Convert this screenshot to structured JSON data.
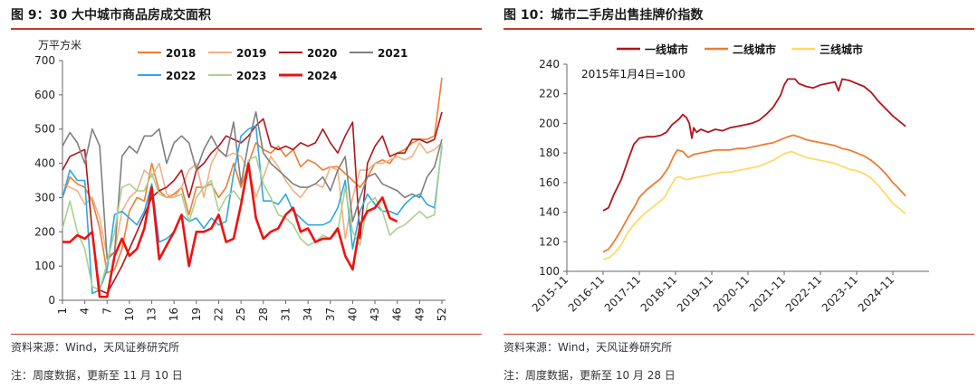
{
  "left": {
    "figure_title": "图 9：30 大中城市商品房成交面积",
    "source": "资料来源：Wind，天风证券研究所",
    "note": "注：周度数据，更新至 11 月 10 日"
  },
  "right": {
    "figure_title": "图 10：城市二手房出售挂牌价指数",
    "source": "资料来源：Wind，天风证券研究所",
    "note": "注：周度数据，更新至 10 月 28 日"
  },
  "chart_data": [
    {
      "type": "line",
      "ylabel": "万平方米",
      "ylim": [
        0,
        700
      ],
      "yticks": [
        0,
        100,
        200,
        300,
        400,
        500,
        600,
        700
      ],
      "xticks": [
        "1",
        "4",
        "7",
        "10",
        "13",
        "16",
        "19",
        "22",
        "25",
        "28",
        "31",
        "34",
        "37",
        "40",
        "43",
        "46",
        "49",
        "52"
      ],
      "legend_position": "top",
      "series": [
        {
          "name": "2018",
          "color": "#ed7d31",
          "width": 1.6,
          "values": [
            300,
            360,
            340,
            330,
            290,
            210,
            80,
            90,
            150,
            260,
            300,
            290,
            400,
            320,
            300,
            310,
            330,
            250,
            330,
            330,
            340,
            300,
            330,
            400,
            330,
            400,
            460,
            440,
            430,
            450,
            420,
            440,
            390,
            410,
            400,
            380,
            390,
            390,
            370,
            350,
            330,
            360,
            400,
            410,
            400,
            430,
            440,
            460,
            470,
            470,
            480,
            650
          ]
        },
        {
          "name": "2019",
          "color": "#f4b183",
          "width": 1.6,
          "values": [
            340,
            330,
            320,
            280,
            300,
            240,
            130,
            140,
            260,
            300,
            320,
            380,
            360,
            400,
            310,
            300,
            330,
            380,
            400,
            300,
            400,
            440,
            420,
            430,
            420,
            380,
            300,
            360,
            420,
            390,
            350,
            320,
            300,
            330,
            340,
            330,
            390,
            380,
            180,
            300,
            380,
            380,
            400,
            400,
            410,
            420,
            410,
            420,
            460,
            430,
            440,
            460
          ]
        },
        {
          "name": "2020",
          "color": "#b0151a",
          "width": 1.6,
          "values": [
            380,
            420,
            430,
            440,
            200,
            30,
            20,
            60,
            100,
            150,
            200,
            250,
            300,
            320,
            330,
            350,
            380,
            300,
            380,
            400,
            430,
            450,
            480,
            470,
            460,
            480,
            510,
            530,
            450,
            440,
            450,
            440,
            460,
            450,
            460,
            500,
            460,
            430,
            480,
            520,
            180,
            400,
            450,
            480,
            420,
            430,
            430,
            470,
            470,
            460,
            470,
            550
          ]
        },
        {
          "name": "2021",
          "color": "#7f7f7f",
          "width": 1.6,
          "values": [
            450,
            490,
            460,
            400,
            500,
            450,
            120,
            140,
            420,
            450,
            430,
            480,
            480,
            500,
            400,
            460,
            480,
            460,
            380,
            440,
            480,
            440,
            420,
            520,
            340,
            460,
            550,
            430,
            400,
            380,
            360,
            340,
            330,
            330,
            340,
            360,
            320,
            380,
            420,
            230,
            300,
            360,
            370,
            340,
            330,
            320,
            300,
            310,
            300,
            360,
            390,
            470
          ]
        },
        {
          "name": "2022",
          "color": "#2ea8e0",
          "width": 1.6,
          "values": [
            300,
            380,
            350,
            350,
            20,
            30,
            90,
            250,
            260,
            240,
            220,
            260,
            340,
            170,
            180,
            200,
            250,
            230,
            240,
            210,
            240,
            220,
            230,
            370,
            480,
            500,
            510,
            290,
            290,
            280,
            310,
            260,
            240,
            220,
            220,
            220,
            230,
            270,
            350,
            150,
            260,
            310,
            280,
            260,
            260,
            250,
            280,
            300,
            310,
            280,
            270,
            450
          ]
        },
        {
          "name": "2023",
          "color": "#a9d18e",
          "width": 1.6,
          "values": [
            210,
            290,
            200,
            150,
            40,
            30,
            110,
            200,
            330,
            340,
            320,
            320,
            370,
            310,
            300,
            300,
            310,
            230,
            300,
            330,
            350,
            260,
            300,
            320,
            290,
            410,
            420,
            340,
            300,
            250,
            240,
            220,
            180,
            160,
            170,
            190,
            180,
            200,
            330,
            200,
            160,
            280,
            300,
            260,
            190,
            210,
            220,
            240,
            260,
            240,
            250,
            460
          ]
        },
        {
          "name": "2024",
          "color": "#ee1111",
          "width": 2.6,
          "values": [
            170,
            170,
            190,
            180,
            200,
            10,
            10,
            130,
            180,
            130,
            150,
            210,
            330,
            120,
            160,
            200,
            250,
            100,
            200,
            200,
            210,
            250,
            170,
            180,
            280,
            400,
            240,
            180,
            200,
            210,
            250,
            270,
            200,
            210,
            170,
            180,
            180,
            210,
            130,
            90,
            220,
            260,
            270,
            300,
            240,
            230
          ]
        }
      ]
    },
    {
      "type": "line",
      "ylim": [
        100,
        240
      ],
      "yticks": [
        100,
        120,
        140,
        160,
        180,
        200,
        220,
        240
      ],
      "xlim": [
        2015.0,
        2025.0
      ],
      "xticks": [
        "2015-11",
        "2016-11",
        "2017-11",
        "2018-11",
        "2019-11",
        "2020-11",
        "2021-11",
        "2022-11",
        "2023-11",
        "2024-11"
      ],
      "annotation": "2015年1月4日=100",
      "legend_position": "top",
      "series": [
        {
          "name": "一线城市",
          "color": "#b0151a",
          "width": 1.8,
          "points": [
            [
              2016.0,
              141
            ],
            [
              2016.15,
              143
            ],
            [
              2016.3,
              152
            ],
            [
              2016.5,
              162
            ],
            [
              2016.7,
              176
            ],
            [
              2016.85,
              186
            ],
            [
              2017.0,
              190
            ],
            [
              2017.2,
              191
            ],
            [
              2017.4,
              191
            ],
            [
              2017.6,
              192
            ],
            [
              2017.75,
              194
            ],
            [
              2017.9,
              199
            ],
            [
              2018.0,
              201
            ],
            [
              2018.1,
              203
            ],
            [
              2018.2,
              206
            ],
            [
              2018.3,
              204
            ],
            [
              2018.38,
              200
            ],
            [
              2018.45,
              190
            ],
            [
              2018.5,
              197
            ],
            [
              2018.58,
              194
            ],
            [
              2018.7,
              196
            ],
            [
              2018.9,
              194
            ],
            [
              2019.1,
              196
            ],
            [
              2019.3,
              195
            ],
            [
              2019.5,
              197
            ],
            [
              2019.7,
              198
            ],
            [
              2019.9,
              199
            ],
            [
              2020.1,
              200
            ],
            [
              2020.3,
              202
            ],
            [
              2020.5,
              206
            ],
            [
              2020.7,
              211
            ],
            [
              2020.9,
              219
            ],
            [
              2021.0,
              226
            ],
            [
              2021.1,
              230
            ],
            [
              2021.3,
              230
            ],
            [
              2021.4,
              227
            ],
            [
              2021.6,
              225
            ],
            [
              2021.8,
              224
            ],
            [
              2022.0,
              226
            ],
            [
              2022.2,
              227
            ],
            [
              2022.4,
              228
            ],
            [
              2022.5,
              222
            ],
            [
              2022.6,
              230
            ],
            [
              2022.8,
              229
            ],
            [
              2023.0,
              227
            ],
            [
              2023.2,
              225
            ],
            [
              2023.4,
              221
            ],
            [
              2023.6,
              215
            ],
            [
              2023.8,
              210
            ],
            [
              2024.0,
              205
            ],
            [
              2024.2,
              201
            ],
            [
              2024.35,
              198
            ]
          ]
        },
        {
          "name": "二线城市",
          "color": "#ed7d31",
          "width": 1.8,
          "points": [
            [
              2016.0,
              113
            ],
            [
              2016.15,
              115
            ],
            [
              2016.3,
              120
            ],
            [
              2016.5,
              128
            ],
            [
              2016.7,
              137
            ],
            [
              2016.9,
              145
            ],
            [
              2017.0,
              150
            ],
            [
              2017.2,
              155
            ],
            [
              2017.4,
              159
            ],
            [
              2017.6,
              163
            ],
            [
              2017.8,
              170
            ],
            [
              2017.95,
              178
            ],
            [
              2018.05,
              182
            ],
            [
              2018.2,
              181
            ],
            [
              2018.35,
              177
            ],
            [
              2018.5,
              179
            ],
            [
              2018.7,
              180
            ],
            [
              2018.9,
              181
            ],
            [
              2019.1,
              182
            ],
            [
              2019.3,
              182
            ],
            [
              2019.5,
              182
            ],
            [
              2019.7,
              183
            ],
            [
              2019.9,
              183
            ],
            [
              2020.1,
              184
            ],
            [
              2020.3,
              185
            ],
            [
              2020.5,
              186
            ],
            [
              2020.7,
              187
            ],
            [
              2020.9,
              189
            ],
            [
              2021.1,
              191
            ],
            [
              2021.25,
              192
            ],
            [
              2021.4,
              191
            ],
            [
              2021.6,
              189
            ],
            [
              2021.8,
              188
            ],
            [
              2022.0,
              187
            ],
            [
              2022.2,
              186
            ],
            [
              2022.4,
              185
            ],
            [
              2022.6,
              183
            ],
            [
              2022.8,
              182
            ],
            [
              2023.0,
              180
            ],
            [
              2023.2,
              178
            ],
            [
              2023.4,
              175
            ],
            [
              2023.6,
              171
            ],
            [
              2023.8,
              166
            ],
            [
              2024.0,
              160
            ],
            [
              2024.2,
              155
            ],
            [
              2024.35,
              151
            ]
          ]
        },
        {
          "name": "三线城市",
          "color": "#ffd966",
          "width": 1.8,
          "points": [
            [
              2016.0,
              108
            ],
            [
              2016.15,
              109
            ],
            [
              2016.3,
              112
            ],
            [
              2016.5,
              118
            ],
            [
              2016.7,
              127
            ],
            [
              2016.9,
              133
            ],
            [
              2017.1,
              138
            ],
            [
              2017.3,
              142
            ],
            [
              2017.5,
              146
            ],
            [
              2017.7,
              150
            ],
            [
              2017.85,
              157
            ],
            [
              2018.0,
              163
            ],
            [
              2018.1,
              164
            ],
            [
              2018.3,
              162
            ],
            [
              2018.5,
              163
            ],
            [
              2018.7,
              164
            ],
            [
              2018.9,
              165
            ],
            [
              2019.1,
              166
            ],
            [
              2019.3,
              167
            ],
            [
              2019.5,
              167
            ],
            [
              2019.7,
              168
            ],
            [
              2019.9,
              169
            ],
            [
              2020.1,
              170
            ],
            [
              2020.3,
              171
            ],
            [
              2020.5,
              173
            ],
            [
              2020.7,
              175
            ],
            [
              2020.9,
              178
            ],
            [
              2021.05,
              180
            ],
            [
              2021.2,
              181
            ],
            [
              2021.4,
              179
            ],
            [
              2021.6,
              177
            ],
            [
              2021.8,
              176
            ],
            [
              2022.0,
              175
            ],
            [
              2022.2,
              174
            ],
            [
              2022.4,
              173
            ],
            [
              2022.6,
              171
            ],
            [
              2022.8,
              169
            ],
            [
              2023.0,
              168
            ],
            [
              2023.2,
              166
            ],
            [
              2023.4,
              163
            ],
            [
              2023.6,
              158
            ],
            [
              2023.8,
              152
            ],
            [
              2024.0,
              146
            ],
            [
              2024.2,
              142
            ],
            [
              2024.35,
              139
            ]
          ]
        }
      ]
    }
  ]
}
